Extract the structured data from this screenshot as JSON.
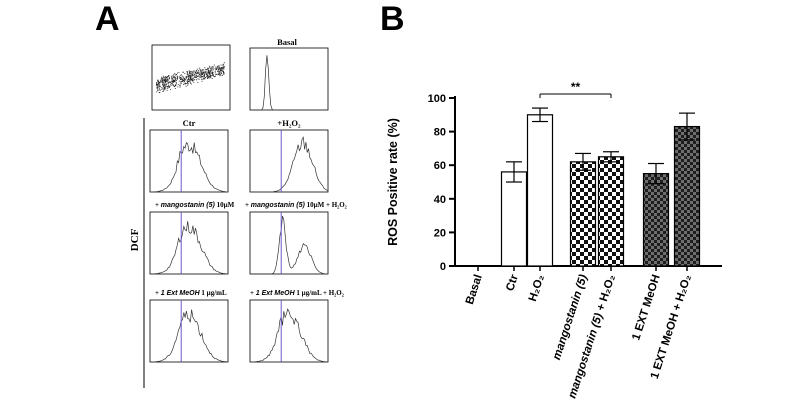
{
  "panel_a": {
    "letter": "A",
    "row_label": "DCF",
    "basal_title": "Basal",
    "histograms": [
      {
        "title": "Ctr",
        "shape": "broad"
      },
      {
        "title": "+H₂O₂",
        "shape": "right"
      },
      {
        "prefix": "+",
        "agent": "mangostanin (5)",
        "suffix": "10µM",
        "shape": "broad"
      },
      {
        "prefix": "+",
        "agent": "mangostanin (5)",
        "suffix": "10µM + H₂O₂",
        "shape": "split"
      },
      {
        "prefix": "+",
        "agent": "1 Ext MeOH",
        "suffix": "1 µg/mL",
        "shape": "broad"
      },
      {
        "prefix": "+",
        "agent": "1 Ext MeOH",
        "suffix": "1 µg/mL  + H₂O₂",
        "shape": "broad"
      }
    ]
  },
  "chart_data": {
    "type": "bar",
    "panel_letter": "B",
    "title": "",
    "xlabel": "",
    "ylabel": "ROS Positive rate (%)",
    "ylim": [
      0,
      100
    ],
    "yticks": [
      0,
      20,
      40,
      60,
      80,
      100
    ],
    "categories": [
      "Basal",
      "Ctr",
      "H₂O₂",
      "mangostanin (5)",
      "mangostanin (5) + H₂O₂",
      "1 EXT MeOH",
      "1 EXT MeOH + H₂O₂"
    ],
    "values": [
      0,
      56,
      90,
      62,
      65,
      55,
      83
    ],
    "errors": [
      0,
      6,
      4,
      5,
      3,
      6,
      8
    ],
    "fills": [
      "white",
      "white",
      "white",
      "checker",
      "checker",
      "dark-checker",
      "dark-checker"
    ],
    "significance": {
      "from": "H₂O₂",
      "to": "mangostanin (5) + H₂O₂",
      "label": "**"
    },
    "grid": false,
    "legend": "none"
  },
  "colors": {
    "bar_stroke": "#000000",
    "checker_dark": "#111111",
    "checker_dark_dense": "#2a2a2a",
    "gate_line": "#6a5acd"
  }
}
